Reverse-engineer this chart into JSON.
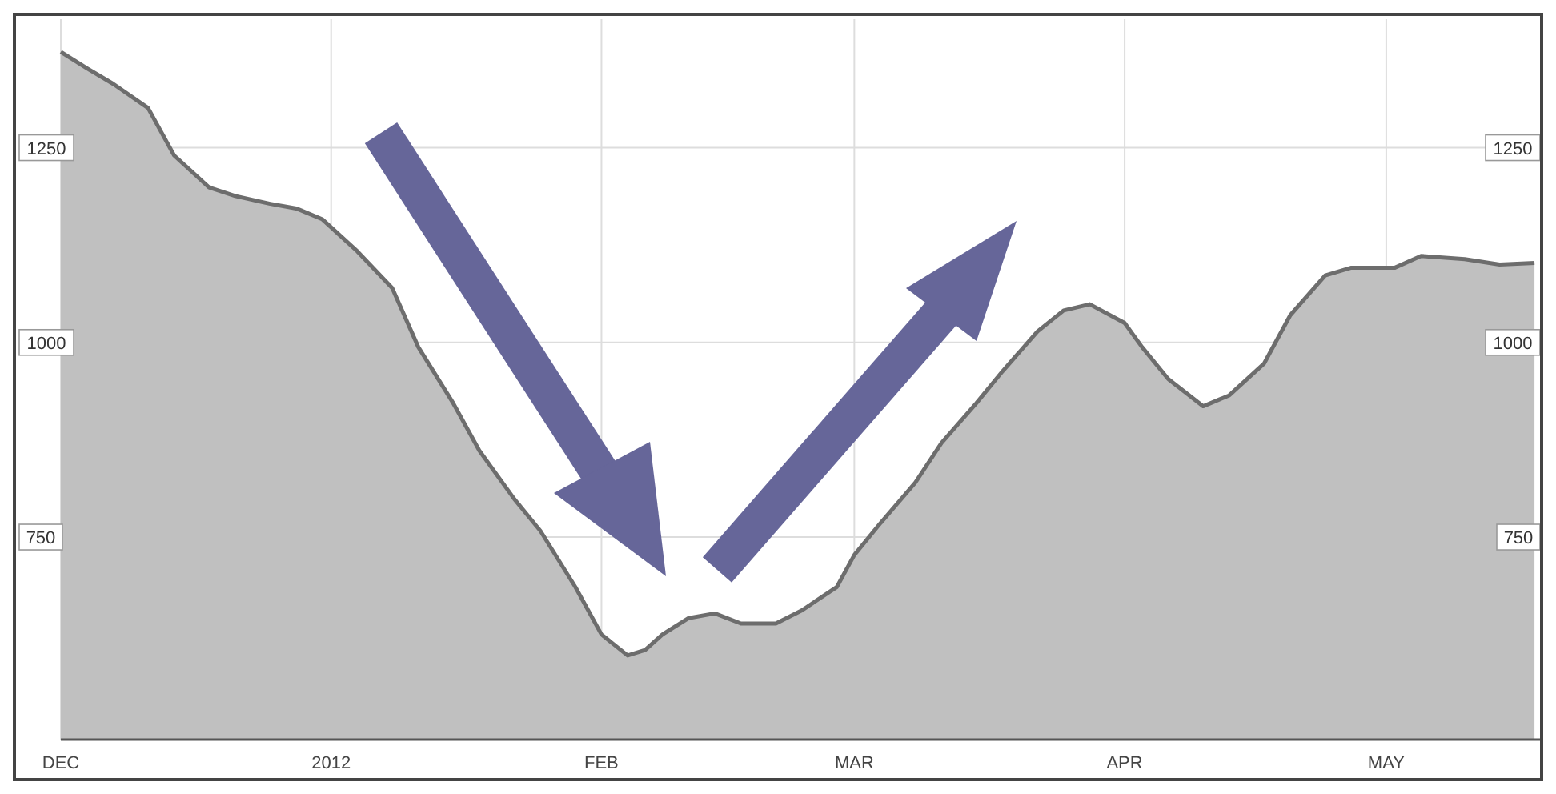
{
  "chart_data": {
    "type": "area",
    "x": [
      "2011-12-01",
      "2011-12-04",
      "2011-12-07",
      "2011-12-11",
      "2011-12-14",
      "2011-12-18",
      "2011-12-21",
      "2011-12-25",
      "2011-12-28",
      "2011-12-31",
      "2012-01-04",
      "2012-01-08",
      "2012-01-11",
      "2012-01-15",
      "2012-01-18",
      "2012-01-22",
      "2012-01-25",
      "2012-01-29",
      "2012-02-01",
      "2012-02-04",
      "2012-02-06",
      "2012-02-08",
      "2012-02-11",
      "2012-02-14",
      "2012-02-17",
      "2012-02-21",
      "2012-02-24",
      "2012-02-28",
      "2012-03-01",
      "2012-03-04",
      "2012-03-08",
      "2012-03-11",
      "2012-03-15",
      "2012-03-18",
      "2012-03-22",
      "2012-03-25",
      "2012-03-28",
      "2012-04-01",
      "2012-04-03",
      "2012-04-06",
      "2012-04-10",
      "2012-04-13",
      "2012-04-17",
      "2012-04-20",
      "2012-04-24",
      "2012-04-27",
      "2012-05-02",
      "2012-05-05",
      "2012-05-10",
      "2012-05-14",
      "2012-05-18"
    ],
    "series": [
      {
        "color": "#c0c0c0",
        "values": [
          1373,
          1352,
          1332,
          1301,
          1240,
          1199,
          1188,
          1178,
          1172,
          1158,
          1117,
          1070,
          994,
          922,
          861,
          799,
          758,
          686,
          625,
          598,
          605,
          625,
          646,
          652,
          639,
          639,
          656,
          686,
          727,
          768,
          820,
          871,
          922,
          963,
          1014,
          1041,
          1049,
          1025,
          994,
          953,
          918,
          932,
          973,
          1035,
          1086,
          1096,
          1096,
          1111,
          1107,
          1100,
          1102
        ]
      }
    ],
    "xlim": [
      "2011-12-01",
      "2012-05-19"
    ],
    "xticks": [
      {
        "value": "2011-12-01",
        "label": "DEC"
      },
      {
        "value": "2012-01-01",
        "label": "2012"
      },
      {
        "value": "2012-02-01",
        "label": "FEB"
      },
      {
        "value": "2012-03-01",
        "label": "MAR"
      },
      {
        "value": "2012-04-01",
        "label": "APR"
      },
      {
        "value": "2012-05-01",
        "label": "MAY"
      }
    ],
    "ylim": [
      490,
      1415
    ],
    "yticks": [
      750,
      1000,
      1250
    ],
    "y2lim": [
      490,
      1415
    ],
    "y2ticks": [
      750,
      1000,
      1250
    ],
    "grid": true
  }
}
